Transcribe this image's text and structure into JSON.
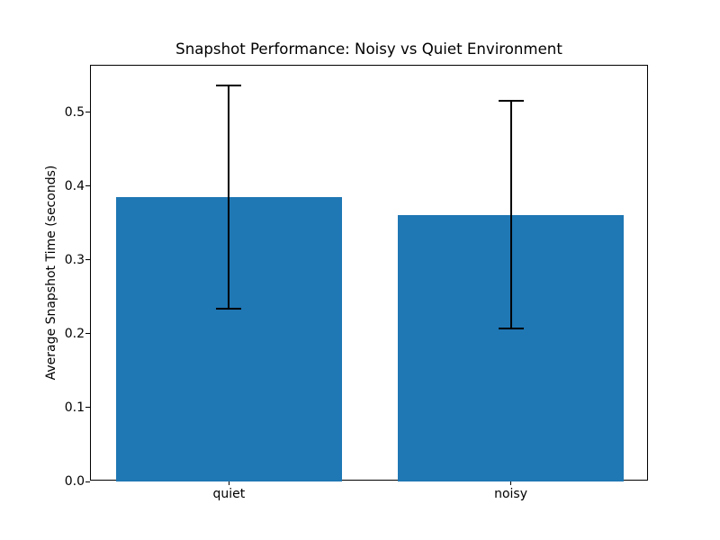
{
  "chart_data": {
    "type": "bar",
    "title": "Snapshot Performance: Noisy vs Quiet Environment",
    "xlabel": "",
    "ylabel": "Average Snapshot Time (seconds)",
    "categories": [
      "quiet",
      "noisy"
    ],
    "values": [
      0.385,
      0.361
    ],
    "yerr": [
      0.151,
      0.154
    ],
    "error_upper": [
      0.536,
      0.515
    ],
    "error_lower": [
      0.234,
      0.207
    ],
    "yticks": [
      0.0,
      0.1,
      0.2,
      0.3,
      0.4,
      0.5
    ],
    "ytick_labels": [
      "0.0",
      "0.1",
      "0.2",
      "0.3",
      "0.4",
      "0.5"
    ],
    "ylim": [
      0,
      0.563
    ],
    "xlim": [
      -0.49,
      1.49
    ],
    "bar_positions": [
      0,
      1
    ],
    "bar_width": 0.8,
    "bar_color": "#1f77b4",
    "error_color": "#000000",
    "background_color": "#ffffff",
    "grid": false,
    "legend": null
  }
}
